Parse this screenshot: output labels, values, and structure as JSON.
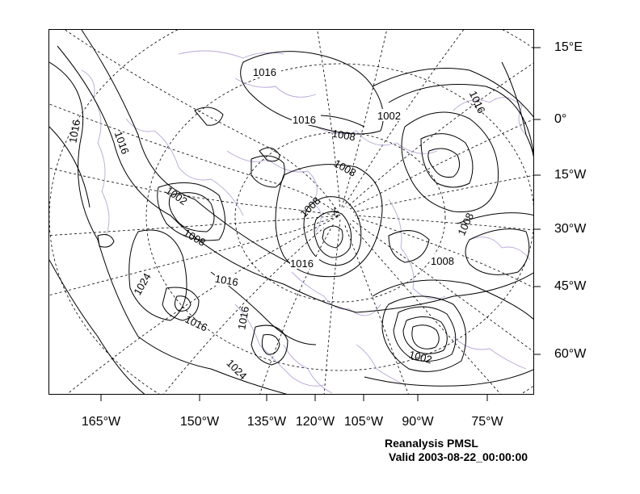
{
  "map": {
    "title": "Reanalysis PMSL",
    "valid_time": "Valid 2003-08-22_00:00:00",
    "colors": {
      "contour": "#000000",
      "coastline": "#b9a7d8",
      "grid": "#000000",
      "background": "#ffffff"
    },
    "right_axis_labels": [
      "15°E",
      "0°",
      "15°W",
      "30°W",
      "45°W",
      "60°W"
    ],
    "bottom_axis_labels": [
      "165°W",
      "150°W",
      "135°W",
      "120°W",
      "105°W",
      "90°W",
      "75°W"
    ],
    "contour_labels": [
      "1016",
      "1016",
      "1016",
      "1016",
      "1016",
      "1016",
      "1016",
      "1016",
      "1008",
      "1008",
      "1008",
      "1008",
      "1008",
      "1008",
      "1002",
      "1002",
      "1002",
      "1024",
      "1024"
    ]
  }
}
